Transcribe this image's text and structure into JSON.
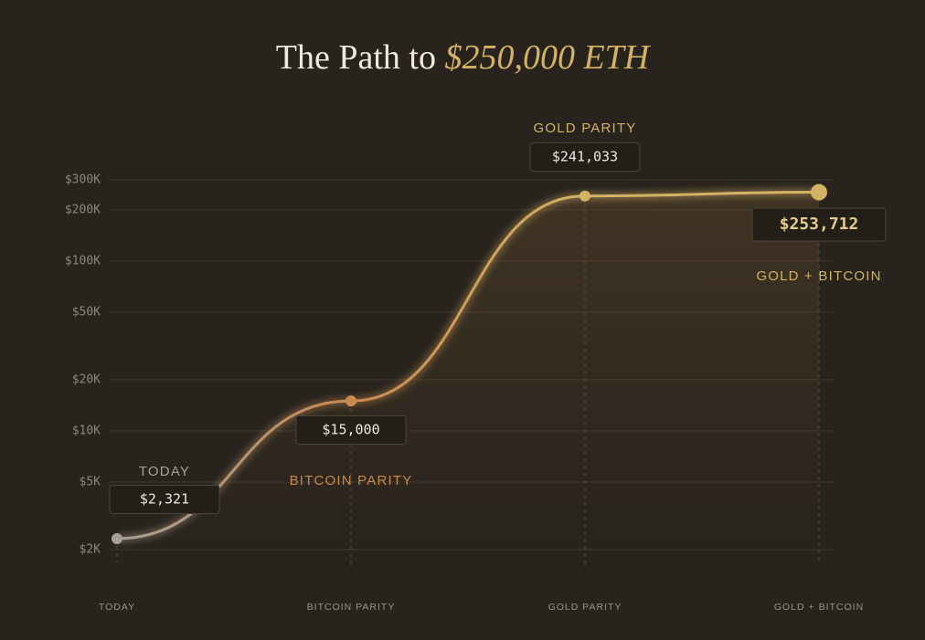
{
  "chart_data": {
    "type": "line",
    "title": "The Path to",
    "title_highlight": "$250,000 ETH",
    "categories": [
      "TODAY",
      "BITCOIN PARITY",
      "GOLD PARITY",
      "GOLD + BITCOIN"
    ],
    "values": [
      2321,
      15000,
      241033,
      253712
    ],
    "value_labels": [
      "$2,321",
      "$15,000",
      "$241,033",
      "$253,712"
    ],
    "colors": [
      "#a8a096",
      "#c98a4e",
      "#d4b265",
      "#d4b265"
    ],
    "log_scale": true,
    "grid": true,
    "ylim": [
      2000,
      300000
    ],
    "yticks": [
      {
        "value": 2000,
        "label": "$2K"
      },
      {
        "value": 5000,
        "label": "$5K"
      },
      {
        "value": 10000,
        "label": "$10K"
      },
      {
        "value": 20000,
        "label": "$20K"
      },
      {
        "value": 50000,
        "label": "$50K"
      },
      {
        "value": 100000,
        "label": "$100K"
      },
      {
        "value": 200000,
        "label": "$200K"
      },
      {
        "value": 300000,
        "label": "$300K"
      }
    ]
  }
}
